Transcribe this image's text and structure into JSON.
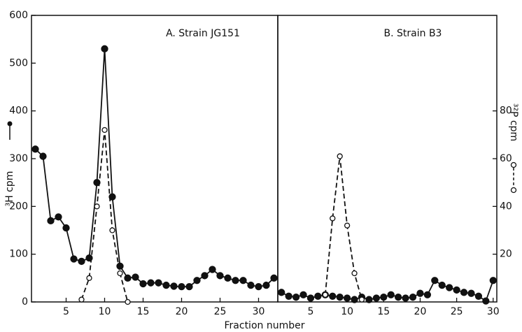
{
  "chart_data": {
    "type": "line",
    "y_label": "³H cpm",
    "y2_label": "³²P cpm",
    "x_label": "Fraction number",
    "ylim": [
      0,
      600
    ],
    "yticks": [
      0,
      100,
      200,
      300,
      400,
      500,
      600
    ],
    "y2lim": [
      0,
      120
    ],
    "y2ticks": [
      20,
      40,
      60,
      80
    ],
    "panels": [
      {
        "title": "A. Strain JG151",
        "xlim": [
          0.5,
          32.5
        ],
        "xticks": [
          5,
          10,
          15,
          20,
          25,
          30
        ],
        "x": [
          1,
          2,
          3,
          4,
          5,
          6,
          7,
          8,
          9,
          10,
          11,
          12,
          13,
          14,
          15,
          16,
          17,
          18,
          19,
          20,
          21,
          22,
          23,
          24,
          25,
          26,
          27,
          28,
          29,
          30,
          31,
          32
        ],
        "series": [
          {
            "name": "³H",
            "color": "#111111",
            "values": [
              320,
              305,
              170,
              178,
              155,
              90,
              85,
              92,
              250,
              530,
              220,
              75,
              50,
              52,
              38,
              40,
              40,
              35,
              33,
              32,
              32,
              45,
              55,
              68,
              55,
              50,
              45,
              45,
              35,
              32,
              35,
              50
            ]
          },
          {
            "name": "³²P",
            "color": "#111111",
            "axis": "y2",
            "values": [
              null,
              null,
              null,
              null,
              null,
              null,
              1,
              10,
              40,
              72,
              30,
              12,
              0,
              null,
              null,
              null,
              null,
              null,
              null,
              null,
              null,
              null,
              null,
              null,
              null,
              null,
              null,
              null,
              null,
              null,
              null,
              null
            ]
          }
        ]
      },
      {
        "title": "B. Strain B3",
        "xlim": [
          0.5,
          30.5
        ],
        "xticks": [
          5,
          10,
          15,
          20,
          25,
          30
        ],
        "x": [
          1,
          2,
          3,
          4,
          5,
          6,
          7,
          8,
          9,
          10,
          11,
          12,
          13,
          14,
          15,
          16,
          17,
          18,
          19,
          20,
          21,
          22,
          23,
          24,
          25,
          26,
          27,
          28,
          29,
          30
        ],
        "series": [
          {
            "name": "³H",
            "color": "#111111",
            "values": [
              20,
              12,
              10,
              15,
              8,
              12,
              15,
              12,
              10,
              8,
              5,
              10,
              5,
              8,
              10,
              15,
              10,
              8,
              10,
              18,
              15,
              45,
              35,
              30,
              25,
              20,
              18,
              12,
              2,
              45
            ]
          },
          {
            "name": "³²P",
            "color": "#111111",
            "axis": "y2",
            "values": [
              null,
              null,
              null,
              null,
              null,
              null,
              3,
              35,
              61,
              32,
              12,
              1,
              null,
              null,
              null,
              null,
              null,
              null,
              null,
              null,
              null,
              null,
              null,
              null,
              null,
              null,
              null,
              null,
              null,
              null
            ]
          }
        ]
      }
    ]
  }
}
